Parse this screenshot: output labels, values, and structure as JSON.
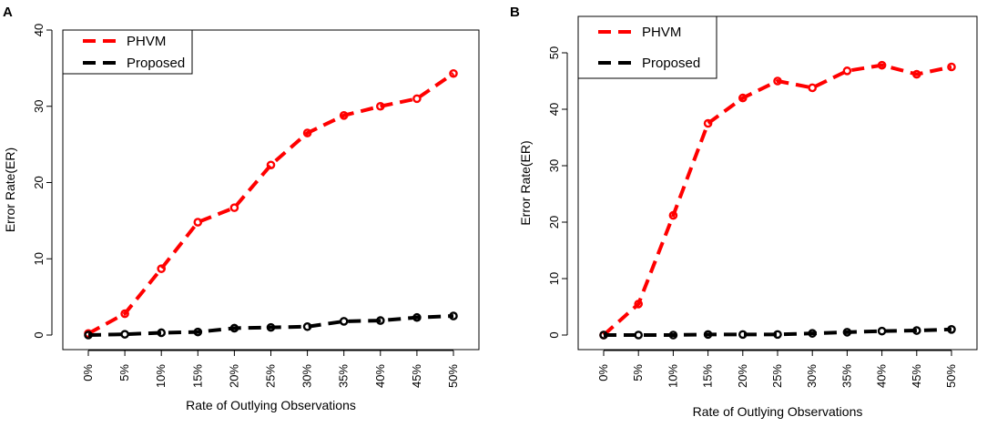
{
  "chart_data": [
    {
      "panel_label": "A",
      "type": "line",
      "title": "",
      "xlabel": "Rate of Outlying Observations",
      "ylabel": "Error Rate(ER)",
      "categories": [
        "0%",
        "5%",
        "10%",
        "15%",
        "20%",
        "25%",
        "30%",
        "35%",
        "40%",
        "45%",
        "50%"
      ],
      "ylim": [
        0,
        40
      ],
      "yticks": [
        0,
        10,
        20,
        30,
        40
      ],
      "legend_position": "top-left",
      "series": [
        {
          "name": "PHVM",
          "color": "#ff0000",
          "values": [
            0.2,
            2.8,
            8.7,
            14.8,
            16.7,
            22.3,
            26.5,
            28.8,
            30.0,
            31.0,
            34.3
          ]
        },
        {
          "name": "Proposed",
          "color": "#000000",
          "values": [
            0.0,
            0.1,
            0.3,
            0.4,
            0.9,
            1.0,
            1.1,
            1.8,
            1.9,
            2.3,
            2.5
          ]
        }
      ]
    },
    {
      "panel_label": "B",
      "type": "line",
      "title": "",
      "xlabel": "Rate of Outlying Observations",
      "ylabel": "Error Rate(ER)",
      "categories": [
        "0%",
        "5%",
        "10%",
        "15%",
        "20%",
        "25%",
        "30%",
        "35%",
        "40%",
        "45%",
        "50%"
      ],
      "ylim": [
        0,
        50
      ],
      "yticks": [
        0,
        10,
        20,
        30,
        40,
        50
      ],
      "legend_position": "top-left",
      "series": [
        {
          "name": "PHVM",
          "color": "#ff0000",
          "values": [
            0.0,
            5.5,
            21.2,
            37.5,
            42.0,
            45.0,
            43.8,
            46.8,
            47.8,
            46.2,
            47.5
          ]
        },
        {
          "name": "Proposed",
          "color": "#000000",
          "values": [
            0.0,
            0.0,
            0.0,
            0.1,
            0.1,
            0.1,
            0.3,
            0.5,
            0.7,
            0.8,
            1.0
          ]
        }
      ]
    }
  ]
}
